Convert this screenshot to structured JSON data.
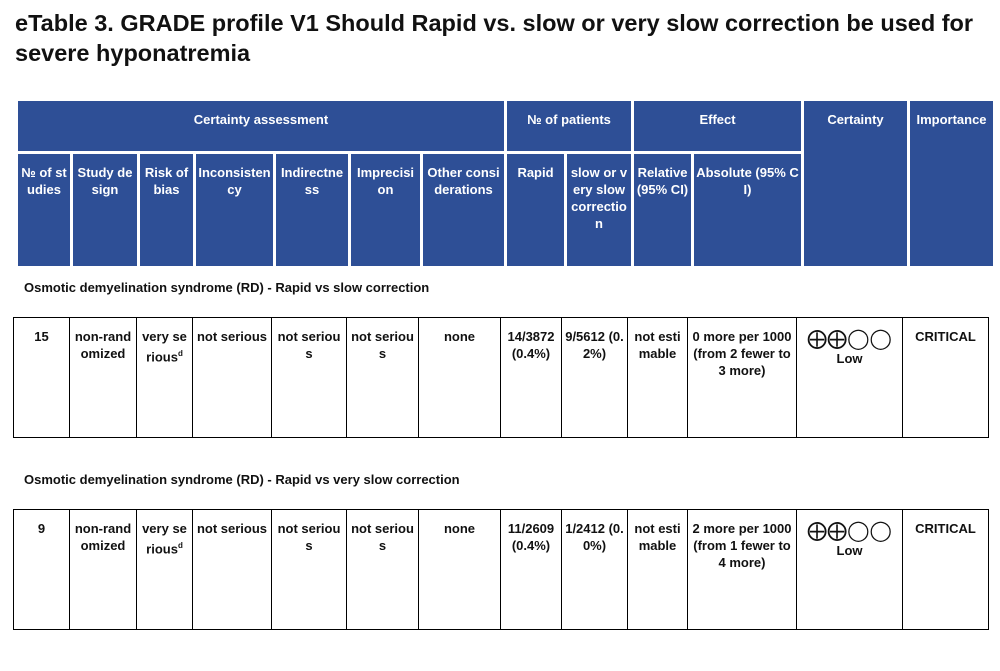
{
  "title": "eTable 3. GRADE profile V1 Should Rapid vs. slow or very slow correction be used for severe hyponatremia",
  "header": {
    "groups": {
      "certainty_assessment": "Certainty assessment",
      "no_of_patients": "№ of patients",
      "effect": "Effect",
      "certainty": "Certainty",
      "importance": "Importance"
    },
    "columns": {
      "no_of_studies": "№ of studies",
      "study_design": "Study design",
      "risk_of_bias": "Risk of bias",
      "inconsistency": "Inconsistency",
      "indirectness": "Indirectness",
      "imprecision": "Imprecision",
      "other_considerations": "Other considerations",
      "rapid": "Rapid",
      "slow": "slow or very slow correction",
      "relative": "Relative (95% CI)",
      "absolute": "Absolute (95% CI)"
    }
  },
  "sections": [
    {
      "label": "Osmotic demyelination syndrome (RD) - Rapid vs slow correction",
      "row": {
        "studies": "15",
        "design": "non-randomized",
        "risk": "very serious",
        "risk_sup": "d",
        "inconsistency": "not serious",
        "indirectness": "not serious",
        "imprecision": "not serious",
        "other": "none",
        "rapid": "14/3872 (0.4%)",
        "slow": "9/5612 (0.2%)",
        "relative": "not estimable",
        "absolute": "0 more per 1000 (from 2 fewer to 3 more)",
        "certainty_symbols": "⨁⨁◯◯",
        "certainty_label": "Low",
        "importance": "CRITICAL"
      }
    },
    {
      "label": "Osmotic demyelination syndrome (RD) - Rapid vs very slow correction",
      "row": {
        "studies": "9",
        "design": "non-randomized",
        "risk": "very serious",
        "risk_sup": "d",
        "inconsistency": "not serious",
        "indirectness": "not serious",
        "imprecision": "not serious",
        "other": "none",
        "rapid": "11/2609 (0.4%)",
        "slow": "1/2412 (0.0%)",
        "relative": "not estimable",
        "absolute": "2 more per 1000 (from 1 fewer to 4 more)",
        "certainty_symbols": "⨁⨁◯◯",
        "certainty_label": "Low",
        "importance": "CRITICAL"
      }
    }
  ]
}
